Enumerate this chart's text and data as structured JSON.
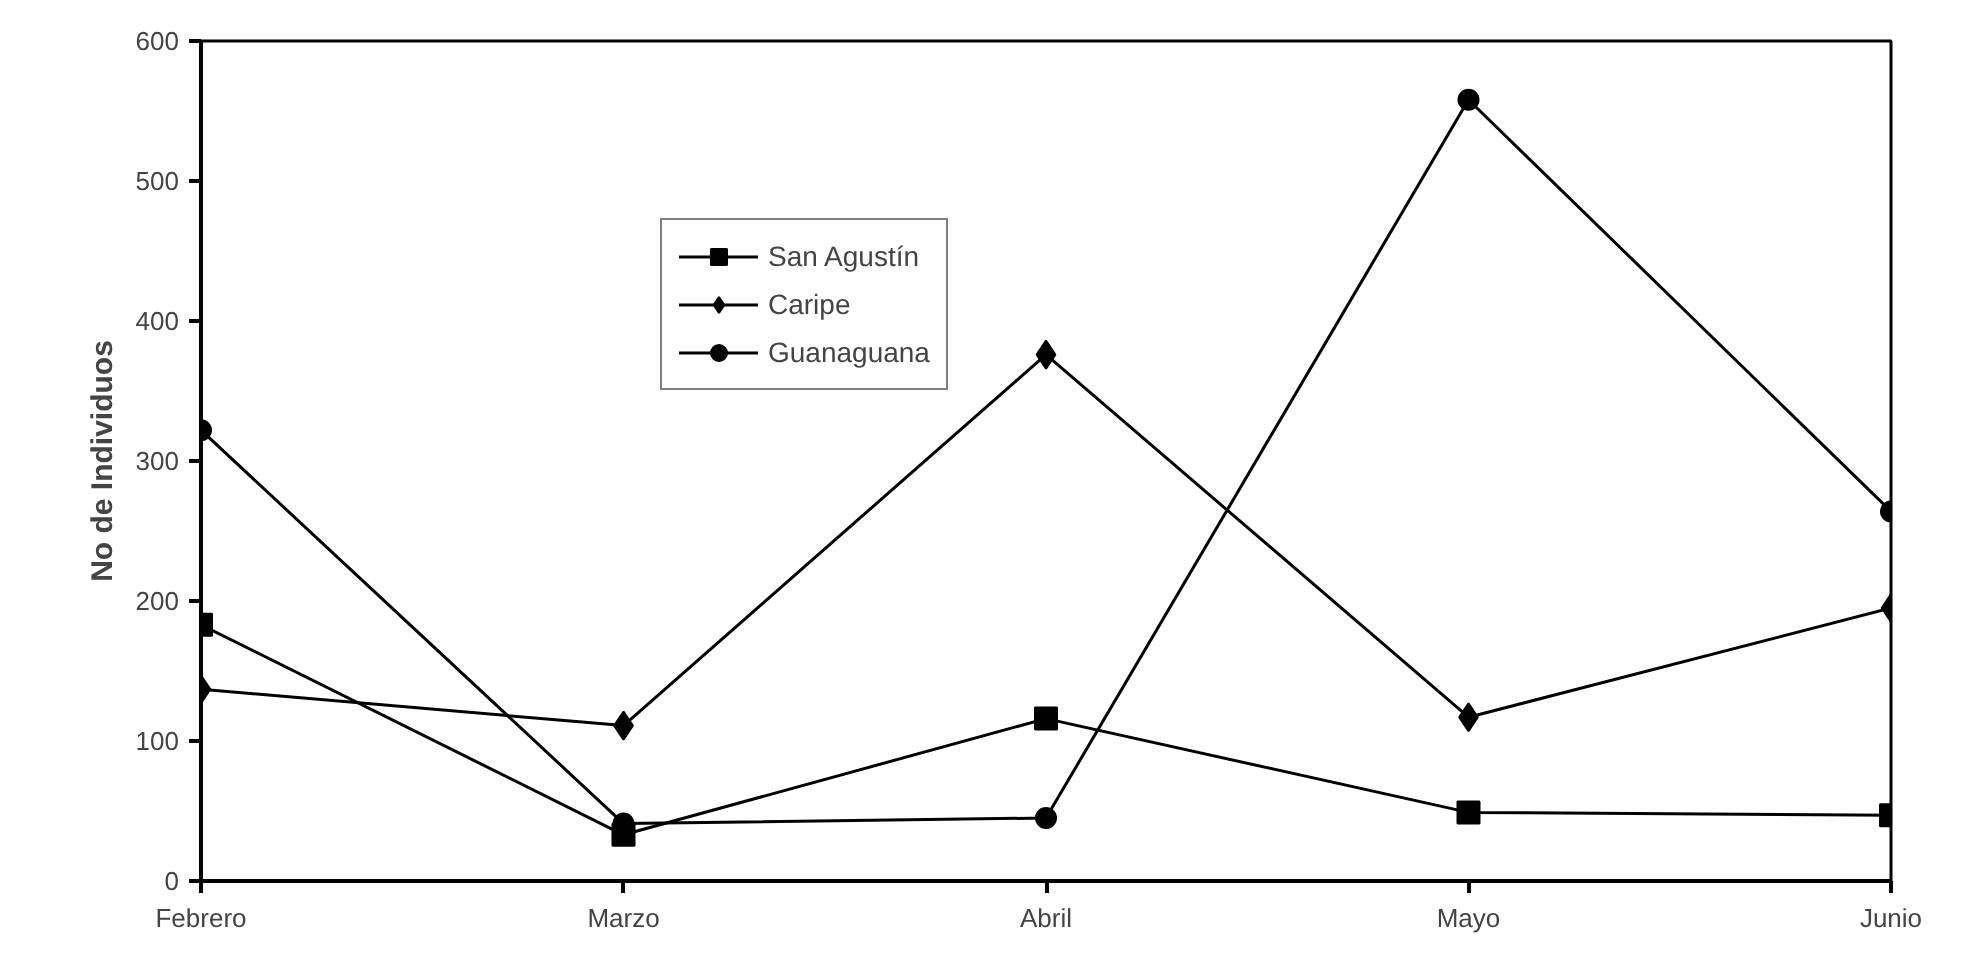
{
  "chart_data": {
    "type": "line",
    "ylabel": "No de Individuos",
    "categories": [
      "Febrero",
      "Marzo",
      "Abril",
      "Mayo",
      "Junio"
    ],
    "series": [
      {
        "name": "San Agustín",
        "color": "#000000",
        "marker": "square",
        "values": [
          183,
          33,
          116,
          49,
          47
        ]
      },
      {
        "name": "Caripe",
        "color": "#000000",
        "marker": "diamond",
        "values": [
          137,
          111,
          376,
          117,
          195
        ]
      },
      {
        "name": "Guanaguana",
        "color": "#000000",
        "marker": "circle",
        "values": [
          322,
          41,
          45,
          558,
          264
        ]
      }
    ],
    "ylim": [
      0,
      600
    ],
    "yticks": [
      0,
      100,
      200,
      300,
      400,
      500,
      600
    ],
    "grid": false,
    "legend": "top left",
    "line_style": "solid"
  }
}
